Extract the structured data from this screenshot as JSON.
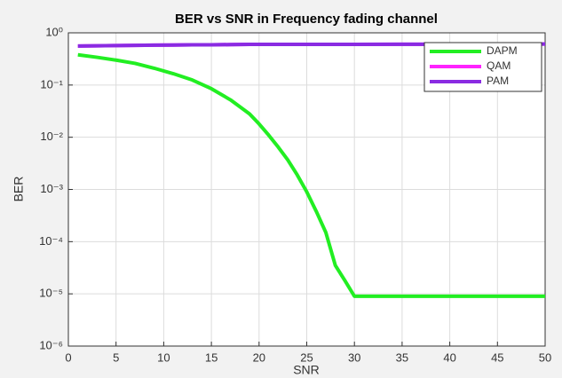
{
  "chart_data": {
    "type": "line",
    "title": "BER vs SNR in Frequency fading channel",
    "x_label": "SNR",
    "y_label": "BER",
    "x": [
      1,
      3,
      5,
      7,
      9,
      11,
      13,
      15,
      17,
      19,
      20,
      21,
      22,
      23,
      24,
      25,
      26,
      27,
      28,
      29,
      30,
      35,
      40,
      45,
      50
    ],
    "series": [
      {
        "name": "DAPM",
        "color": "#22ee22",
        "values": [
          0.38,
          0.34,
          0.3,
          0.26,
          0.21,
          0.165,
          0.125,
          0.085,
          0.052,
          0.028,
          0.018,
          0.011,
          0.0065,
          0.0037,
          0.0019,
          0.0009,
          0.00038,
          0.00015,
          3.5e-05,
          1.8e-05,
          9e-06,
          9e-06,
          9e-06,
          9e-06,
          9e-06
        ]
      },
      {
        "name": "QAM",
        "color": "#ff22ff",
        "values": [
          0.56,
          0.565,
          0.57,
          0.575,
          0.58,
          0.585,
          0.59,
          0.59,
          0.595,
          0.6,
          0.6,
          0.6,
          0.6,
          0.6,
          0.6,
          0.6,
          0.6,
          0.6,
          0.6,
          0.6,
          0.6,
          0.605,
          0.605,
          0.61,
          0.61
        ]
      },
      {
        "name": "PAM",
        "color": "#8a2be2",
        "values": [
          0.56,
          0.565,
          0.57,
          0.575,
          0.58,
          0.585,
          0.59,
          0.59,
          0.595,
          0.6,
          0.6,
          0.6,
          0.6,
          0.6,
          0.6,
          0.6,
          0.6,
          0.6,
          0.6,
          0.6,
          0.6,
          0.605,
          0.605,
          0.61,
          0.61
        ]
      }
    ],
    "xlim": [
      0,
      50
    ],
    "xticks": [
      0,
      5,
      10,
      15,
      20,
      25,
      30,
      35,
      40,
      45,
      50
    ],
    "ylim": [
      1e-06,
      1
    ],
    "log_y": true,
    "yticks": [
      {
        "value": 1e-06,
        "label": "10⁻⁶"
      },
      {
        "value": 1e-05,
        "label": "10⁻⁵"
      },
      {
        "value": 0.0001,
        "label": "10⁻⁴"
      },
      {
        "value": 0.001,
        "label": "10⁻³"
      },
      {
        "value": 0.01,
        "label": "10⁻²"
      },
      {
        "value": 0.1,
        "label": "10⁻¹"
      },
      {
        "value": 1,
        "label": "10⁰"
      }
    ],
    "grid": true,
    "legend": "top-right"
  }
}
